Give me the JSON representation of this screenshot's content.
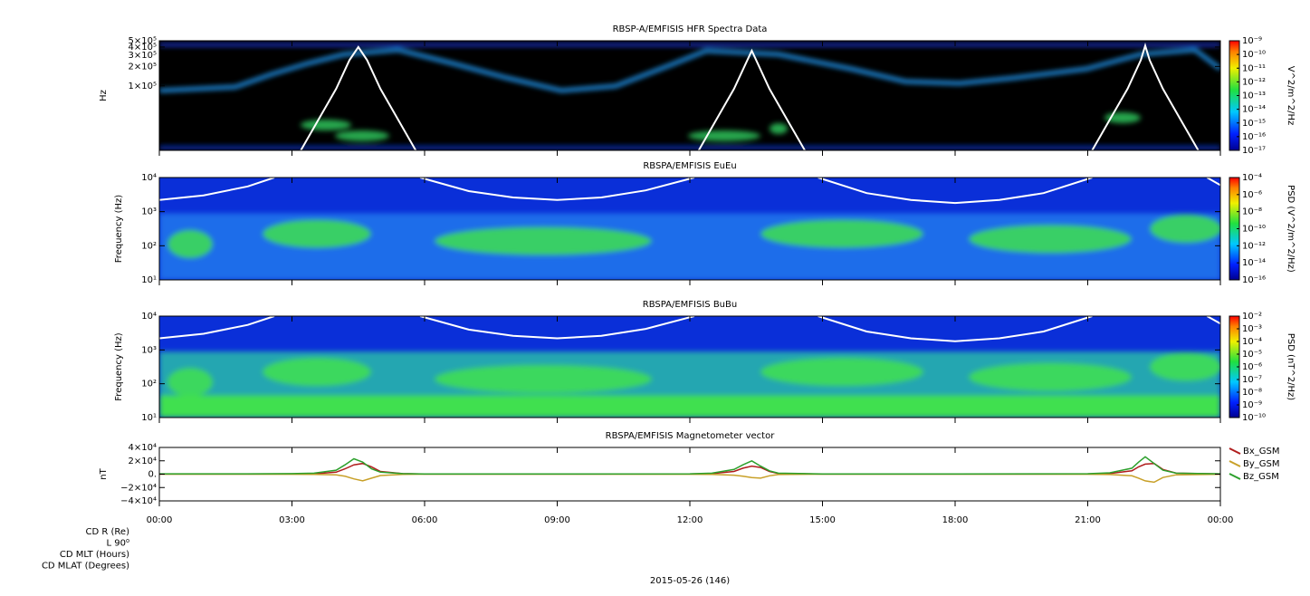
{
  "chart_data": [
    {
      "type": "spectrogram",
      "title": "RBSP-A/EMFISIS  HFR Spectra Data",
      "ylabel": "Hz",
      "ylog": true,
      "xlim": [
        0,
        24
      ],
      "ylim": [
        10000,
        500000
      ],
      "background": "#000000",
      "yticks": [
        {
          "value": 100000,
          "label": "1×10⁵"
        },
        {
          "value": 200000,
          "label": "2×10⁵"
        },
        {
          "value": 300000,
          "label": "3×10⁵"
        },
        {
          "value": 400000,
          "label": "4×10⁵"
        },
        {
          "value": 500000,
          "label": "5×10⁵"
        }
      ],
      "colorbar": {
        "label": "V^2/m^2/Hz",
        "log": true,
        "lim": [
          1e-17,
          1e-09
        ],
        "ticks": [
          {
            "value": 1e-17,
            "label": "10⁻¹⁷"
          },
          {
            "value": 1e-16,
            "label": "10⁻¹⁶"
          },
          {
            "value": 1e-15,
            "label": "10⁻¹⁵"
          },
          {
            "value": 1e-14,
            "label": "10⁻¹⁴"
          },
          {
            "value": 1e-13,
            "label": "10⁻¹³"
          },
          {
            "value": 1e-12,
            "label": "10⁻¹²"
          },
          {
            "value": 1e-11,
            "label": "10⁻¹¹"
          },
          {
            "value": 1e-10,
            "label": "10⁻¹⁰"
          },
          {
            "value": 1e-09,
            "label": "10⁻⁹"
          }
        ]
      },
      "overlay": {
        "color": "#ffffff",
        "x": [
          3.2,
          3.6,
          4.0,
          4.3,
          4.5,
          4.7,
          5.0,
          5.4,
          5.8,
          null,
          12.2,
          12.6,
          13.0,
          13.3,
          13.4,
          13.5,
          13.8,
          14.2,
          14.6,
          null,
          21.1,
          21.5,
          21.9,
          22.2,
          22.3,
          22.4,
          22.7,
          23.1,
          23.5
        ],
        "values": [
          10000,
          30000,
          90000,
          250000,
          400000,
          250000,
          90000,
          30000,
          10000,
          null,
          10000,
          30000,
          90000,
          250000,
          350000,
          250000,
          90000,
          30000,
          10000,
          null,
          10000,
          30000,
          90000,
          250000,
          420000,
          250000,
          90000,
          30000,
          10000
        ]
      }
    },
    {
      "type": "spectrogram",
      "title": "RBSPA/EMFISIS  EuEu",
      "ylabel": "Frequency (Hz)",
      "ylog": true,
      "xlim": [
        0,
        24
      ],
      "ylim": [
        10,
        10000
      ],
      "background": "#0a2fd8",
      "yticks": [
        {
          "value": 10,
          "label": "10¹"
        },
        {
          "value": 100,
          "label": "10²"
        },
        {
          "value": 1000,
          "label": "10³"
        },
        {
          "value": 10000,
          "label": "10⁴"
        }
      ],
      "colorbar": {
        "label": "PSD (V^2/m^2/Hz)",
        "log": true,
        "lim": [
          1e-16,
          0.0001
        ],
        "ticks": [
          {
            "value": 1e-16,
            "label": "10⁻¹⁶"
          },
          {
            "value": 1e-14,
            "label": "10⁻¹⁴"
          },
          {
            "value": 1e-12,
            "label": "10⁻¹²"
          },
          {
            "value": 1e-10,
            "label": "10⁻¹⁰"
          },
          {
            "value": 1e-08,
            "label": "10⁻⁸"
          },
          {
            "value": 1e-06,
            "label": "10⁻⁶"
          },
          {
            "value": 0.0001,
            "label": "10⁻⁴"
          }
        ]
      },
      "overlay": {
        "color": "#ffffff",
        "x": [
          0,
          1,
          2,
          2.6,
          null,
          5.9,
          7,
          8,
          9,
          10,
          11,
          12.1,
          null,
          14.9,
          16,
          17,
          18,
          19,
          20,
          21.1,
          null,
          23.7,
          24
        ],
        "values": [
          2200,
          3000,
          5500,
          10000,
          null,
          10000,
          4000,
          2600,
          2200,
          2600,
          4200,
          10000,
          null,
          10000,
          3500,
          2200,
          1800,
          2200,
          3500,
          10000,
          null,
          10000,
          6000
        ]
      }
    },
    {
      "type": "spectrogram",
      "title": "RBSPA/EMFISIS  BuBu",
      "ylabel": "Frequency (Hz)",
      "ylog": true,
      "xlim": [
        0,
        24
      ],
      "ylim": [
        10,
        10000
      ],
      "background": "#0a2fd8",
      "yticks": [
        {
          "value": 10,
          "label": "10¹"
        },
        {
          "value": 100,
          "label": "10²"
        },
        {
          "value": 1000,
          "label": "10³"
        },
        {
          "value": 10000,
          "label": "10⁴"
        }
      ],
      "colorbar": {
        "label": "PSD (nT^2/Hz)",
        "log": true,
        "lim": [
          1e-10,
          0.01
        ],
        "ticks": [
          {
            "value": 1e-10,
            "label": "10⁻¹⁰"
          },
          {
            "value": 1e-09,
            "label": "10⁻⁹"
          },
          {
            "value": 1e-08,
            "label": "10⁻⁸"
          },
          {
            "value": 1e-07,
            "label": "10⁻⁷"
          },
          {
            "value": 1e-06,
            "label": "10⁻⁶"
          },
          {
            "value": 1e-05,
            "label": "10⁻⁵"
          },
          {
            "value": 0.0001,
            "label": "10⁻⁴"
          },
          {
            "value": 0.001,
            "label": "10⁻³"
          },
          {
            "value": 0.01,
            "label": "10⁻²"
          }
        ]
      },
      "overlay": {
        "color": "#ffffff",
        "x": [
          0,
          1,
          2,
          2.6,
          null,
          5.9,
          7,
          8,
          9,
          10,
          11,
          12.1,
          null,
          14.9,
          16,
          17,
          18,
          19,
          20,
          21.1,
          null,
          23.7,
          24
        ],
        "values": [
          2200,
          3000,
          5500,
          10000,
          null,
          10000,
          4000,
          2600,
          2200,
          2600,
          4200,
          10000,
          null,
          10000,
          3500,
          2200,
          1800,
          2200,
          3500,
          10000,
          null,
          10000,
          6000
        ]
      }
    },
    {
      "type": "line",
      "title": "RBSPA/EMFISIS  Magnetometer vector",
      "ylabel": "nT",
      "xlim": [
        0,
        24
      ],
      "ylim": [
        -40000,
        40000
      ],
      "yticks": [
        {
          "value": -40000,
          "label": "−4×10⁴"
        },
        {
          "value": -20000,
          "label": "−2×10⁴"
        },
        {
          "value": 0,
          "label": "0."
        },
        {
          "value": 20000,
          "label": "2×10⁴"
        },
        {
          "value": 40000,
          "label": "4×10⁴"
        }
      ],
      "xticks": [
        {
          "value": 0,
          "label": "00:00"
        },
        {
          "value": 3,
          "label": "03:00"
        },
        {
          "value": 6,
          "label": "06:00"
        },
        {
          "value": 9,
          "label": "09:00"
        },
        {
          "value": 12,
          "label": "12:00"
        },
        {
          "value": 15,
          "label": "15:00"
        },
        {
          "value": 18,
          "label": "18:00"
        },
        {
          "value": 21,
          "label": "21:00"
        },
        {
          "value": 24,
          "label": "00:00"
        }
      ],
      "xlabel": "2015-05-26 (146)",
      "ephemeris_labels": [
        "CD R (Re)",
        "L 90⁰",
        "CD MLT (Hours)",
        "CD MLAT (Degrees)"
      ],
      "legend": "right",
      "x": [
        0,
        2,
        3,
        3.5,
        4,
        4.2,
        4.4,
        4.6,
        4.8,
        5,
        5.5,
        6,
        9,
        12,
        12.5,
        13,
        13.2,
        13.4,
        13.6,
        13.8,
        14,
        15,
        18,
        21,
        21.5,
        22,
        22.15,
        22.3,
        22.5,
        22.7,
        23,
        24
      ],
      "series": [
        {
          "name": "Bx_GSM",
          "color": "#b01c1c",
          "values": [
            200,
            200,
            300,
            600,
            3000,
            8000,
            14000,
            16000,
            11000,
            4000,
            800,
            200,
            100,
            300,
            800,
            4000,
            9000,
            12000,
            10000,
            4000,
            1000,
            200,
            100,
            300,
            1000,
            5000,
            11000,
            15000,
            16000,
            7000,
            1500,
            300
          ]
        },
        {
          "name": "By_GSM",
          "color": "#c8a028",
          "values": [
            0,
            0,
            -100,
            -300,
            -1000,
            -3000,
            -7000,
            -10000,
            -6000,
            -2000,
            -300,
            0,
            0,
            -100,
            -400,
            -1500,
            -3000,
            -5000,
            -6000,
            -2500,
            -500,
            0,
            0,
            -100,
            -500,
            -2500,
            -6000,
            -10000,
            -12000,
            -5000,
            -1000,
            -100
          ]
        },
        {
          "name": "Bz_GSM",
          "color": "#2ca02c",
          "values": [
            600,
            500,
            800,
            1500,
            6000,
            14000,
            23000,
            18000,
            8000,
            3000,
            800,
            400,
            300,
            600,
            1500,
            7000,
            14000,
            20000,
            12000,
            5000,
            1500,
            400,
            300,
            700,
            2000,
            9000,
            18000,
            26000,
            16000,
            6000,
            1500,
            500
          ]
        }
      ]
    }
  ]
}
